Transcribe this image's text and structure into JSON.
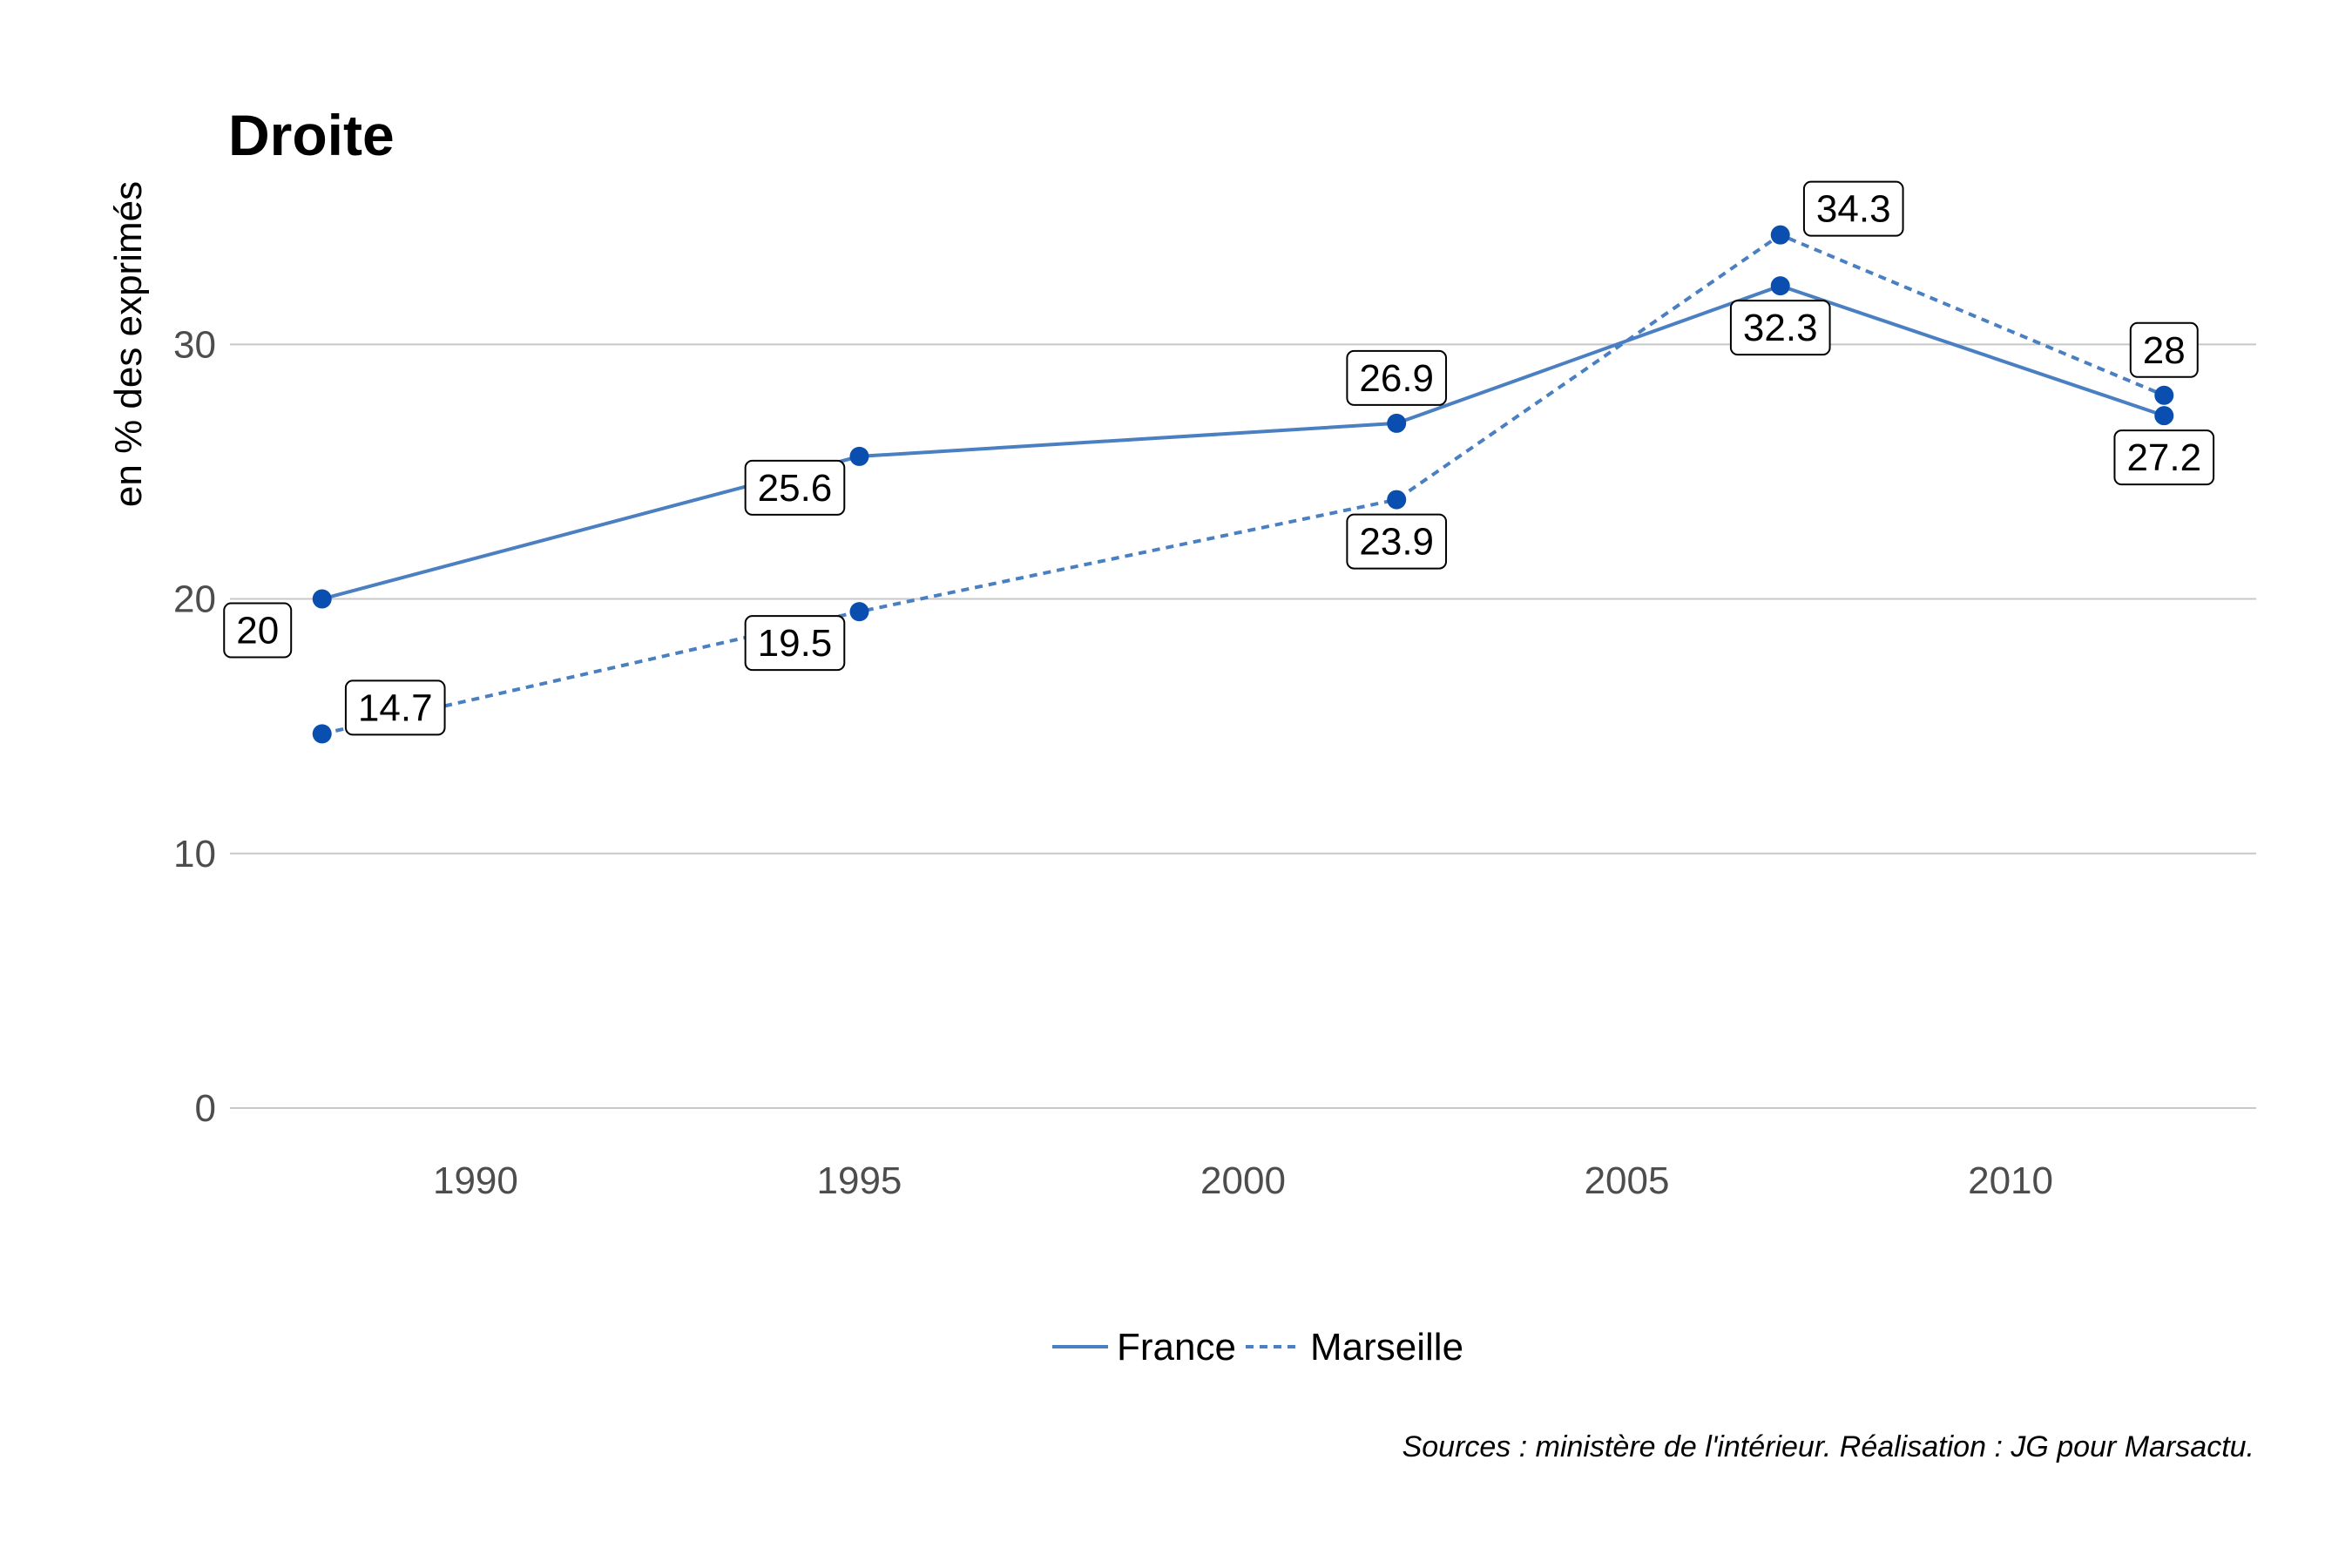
{
  "chart_data": {
    "type": "line",
    "title": "Droite",
    "ylabel": "en % des exprimés",
    "xlabel": "",
    "xlim": [
      1986.8,
      2013.2
    ],
    "ylim": [
      0,
      36
    ],
    "x_ticks": [
      1990,
      1995,
      2000,
      2005,
      2010
    ],
    "y_ticks": [
      0,
      10,
      20,
      30
    ],
    "grid": "horizontal",
    "legend_position": "bottom",
    "caption": "Sources : ministère de l'intérieur. Réalisation : JG pour Marsactu.",
    "colors": {
      "line": "#4a7fc1",
      "point": "#0a4fb0"
    },
    "series": [
      {
        "name": "France",
        "style": "solid",
        "x": [
          1988,
          1995,
          2002,
          2007,
          2012
        ],
        "values": [
          20,
          25.6,
          26.9,
          32.3,
          27.2
        ],
        "labels": [
          "20",
          "25.6",
          "26.9",
          "32.3",
          "27.2"
        ],
        "label_side": [
          "below-left",
          "below-left",
          "above",
          "below",
          "below"
        ]
      },
      {
        "name": "Marseille",
        "style": "dashed",
        "x": [
          1988,
          1995,
          2002,
          2007,
          2012
        ],
        "values": [
          14.7,
          19.5,
          23.9,
          34.3,
          28
        ],
        "labels": [
          "14.7",
          "19.5",
          "23.9",
          "34.3",
          "28"
        ],
        "label_side": [
          "right",
          "below-left",
          "below",
          "right",
          "above"
        ]
      }
    ]
  }
}
